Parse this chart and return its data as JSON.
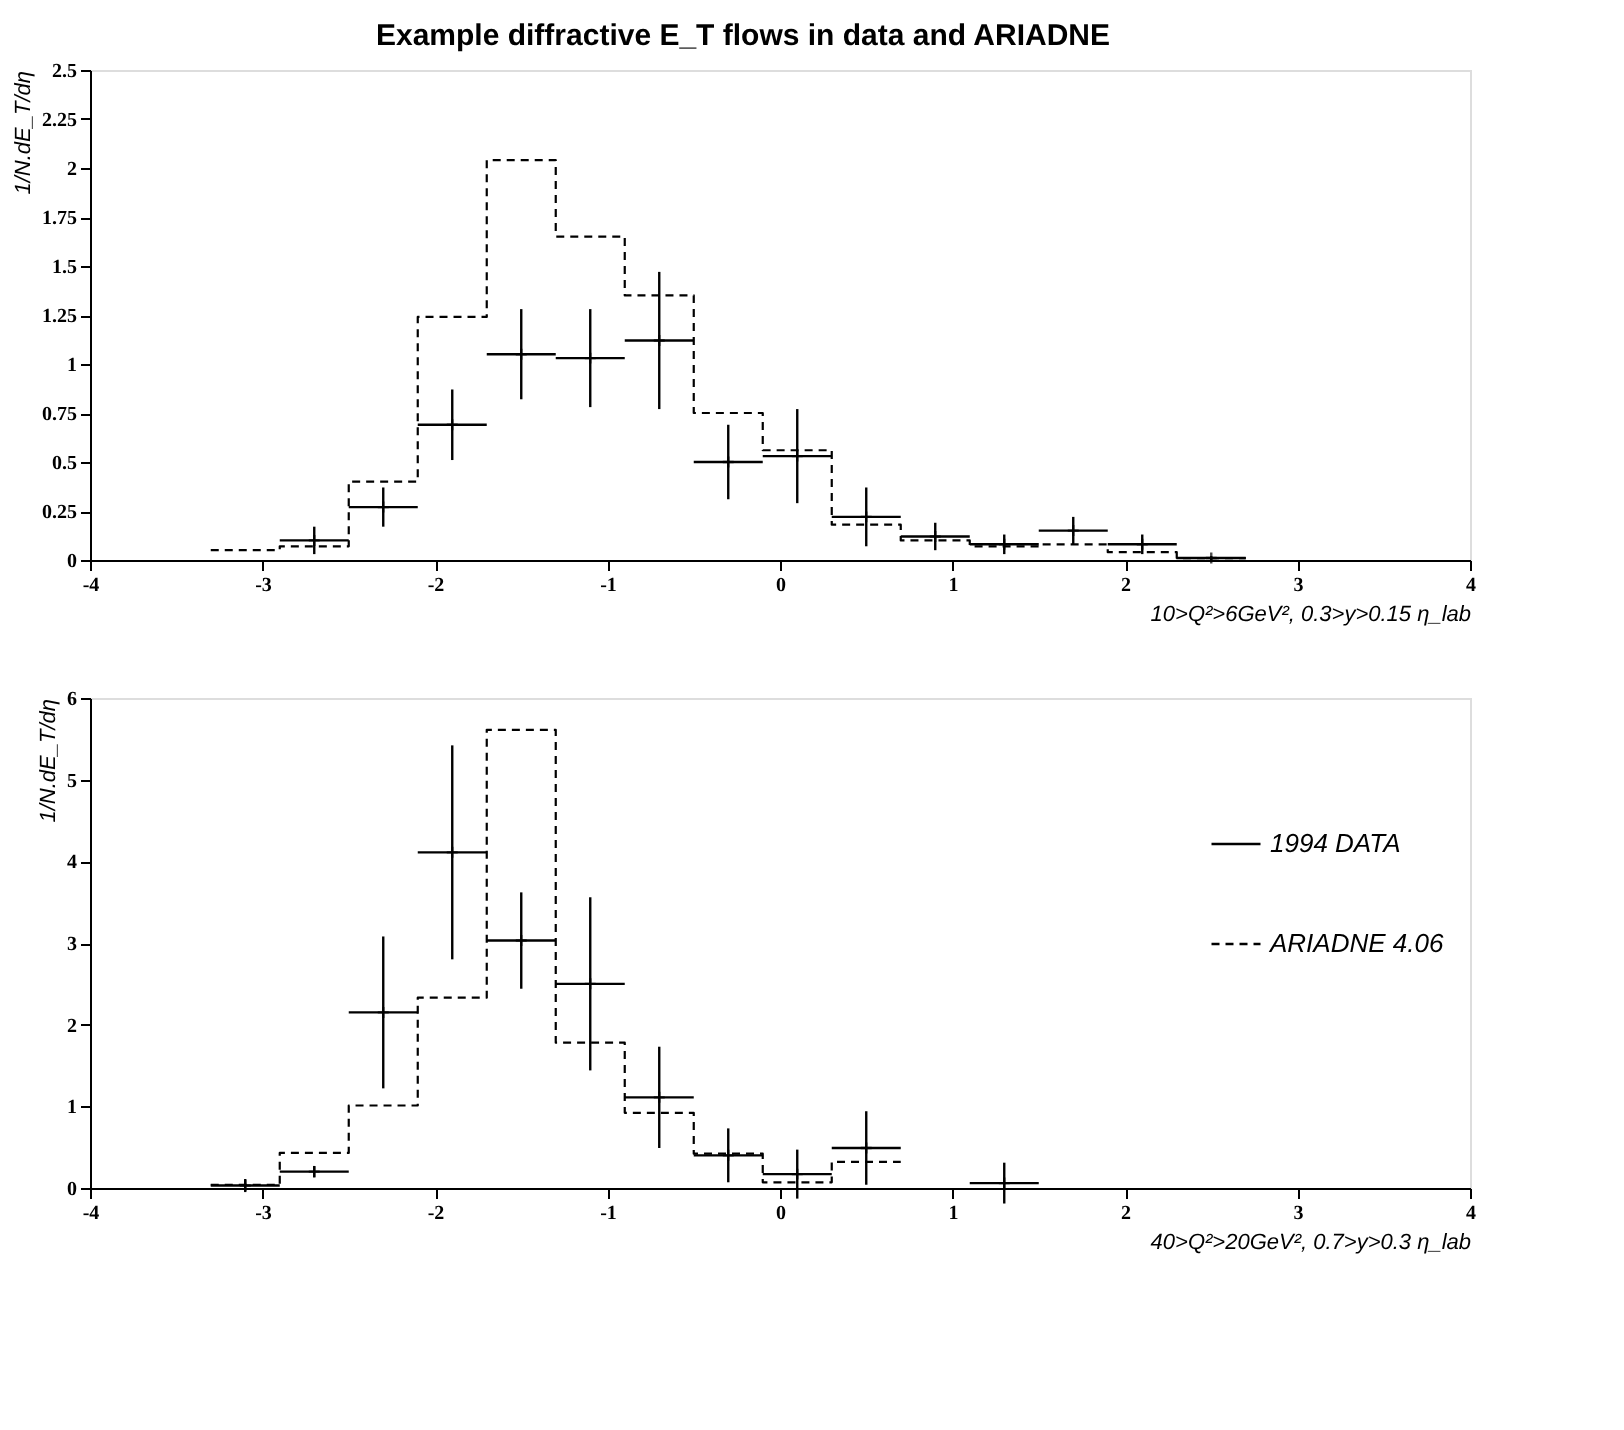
{
  "chart_data": [
    {
      "type": "scatter",
      "title": "Example diffractive E_T flows in data and ARIADNE",
      "xlabel": "10>Q²>6GeV², 0.3>y>0.15  η_lab",
      "ylabel": "1/N.dE_T/dη",
      "xlim": [
        -4,
        4
      ],
      "xticks": [
        -4,
        -3,
        -2,
        -1,
        0,
        1,
        2,
        3,
        4
      ],
      "ylim": [
        0,
        2.5
      ],
      "yticks": [
        0,
        0.25,
        0.5,
        0.75,
        1,
        1.25,
        1.5,
        1.75,
        2,
        2.25,
        2.5
      ],
      "grid": false,
      "legend": false,
      "marker": "cross",
      "series": [
        {
          "color": "#000000",
          "x": [
            -2.7,
            -2.3,
            -1.9,
            -1.5,
            -1.1,
            -0.7,
            -0.3,
            0.1,
            0.5,
            0.9,
            1.3,
            1.7,
            2.1,
            2.5
          ],
          "values": [
            0.1,
            0.27,
            0.69,
            1.05,
            1.03,
            1.12,
            0.5,
            0.53,
            0.22,
            0.12,
            0.08,
            0.15,
            0.08,
            0.01
          ],
          "errors": [
            0.07,
            0.1,
            0.18,
            0.23,
            0.25,
            0.35,
            0.19,
            0.24,
            0.15,
            0.07,
            0.05,
            0.07,
            0.05,
            0.01
          ],
          "xerrors": [
            0.2,
            0.2,
            0.2,
            0.2,
            0.2,
            0.2,
            0.2,
            0.2,
            0.2,
            0.2,
            0.2,
            0.2,
            0.2,
            0.2
          ]
        },
        {
          "type": "histogram",
          "color": "#000000",
          "line_style": "dashed",
          "bins": [
            -3.3,
            -2.9,
            -2.5,
            -2.1,
            -1.7,
            -1.3,
            -0.9,
            -0.5,
            -0.1,
            0.3,
            0.7,
            1.1,
            1.5,
            1.9,
            2.3,
            2.7
          ],
          "values": [
            0.05,
            0.07,
            0.4,
            1.24,
            2.04,
            1.65,
            1.35,
            0.75,
            0.56,
            0.18,
            0.1,
            0.07,
            0.08,
            0.04,
            0.01
          ]
        }
      ]
    },
    {
      "type": "scatter",
      "xlabel": "40>Q²>20GeV², 0.7>y>0.3  η_lab",
      "ylabel": "1/N.dE_T/dη",
      "xlim": [
        -4,
        4
      ],
      "xticks": [
        -4,
        -3,
        -2,
        -1,
        0,
        1,
        2,
        3,
        4
      ],
      "ylim": [
        0,
        6
      ],
      "yticks": [
        0,
        1,
        2,
        3,
        4,
        5,
        6
      ],
      "grid": false,
      "legend": "right",
      "marker": "cross",
      "series": [
        {
          "name": "1994 DATA",
          "color": "#000000",
          "x": [
            -3.1,
            -2.7,
            -2.3,
            -1.9,
            -1.5,
            -1.1,
            -0.7,
            -0.3,
            0.1,
            0.5,
            1.3
          ],
          "values": [
            0.03,
            0.2,
            2.15,
            4.11,
            3.03,
            2.5,
            1.11,
            0.4,
            0.17,
            0.49,
            0.06
          ],
          "errors": [
            0.08,
            0.07,
            0.93,
            1.31,
            0.59,
            1.06,
            0.62,
            0.33,
            0.3,
            0.45,
            0.25
          ],
          "xerrors": [
            0.2,
            0.2,
            0.2,
            0.2,
            0.2,
            0.2,
            0.2,
            0.2,
            0.2,
            0.2,
            0.2
          ]
        },
        {
          "type": "histogram",
          "name": "ARIADNE 4.06",
          "color": "#000000",
          "line_style": "dashed",
          "bins": [
            -3.3,
            -2.9,
            -2.5,
            -2.1,
            -1.7,
            -1.3,
            -0.9,
            -0.5,
            -0.1,
            0.3,
            0.7
          ],
          "values": [
            0.04,
            0.43,
            1.01,
            2.33,
            5.61,
            1.78,
            0.92,
            0.42,
            0.07,
            0.32
          ]
        }
      ]
    }
  ]
}
